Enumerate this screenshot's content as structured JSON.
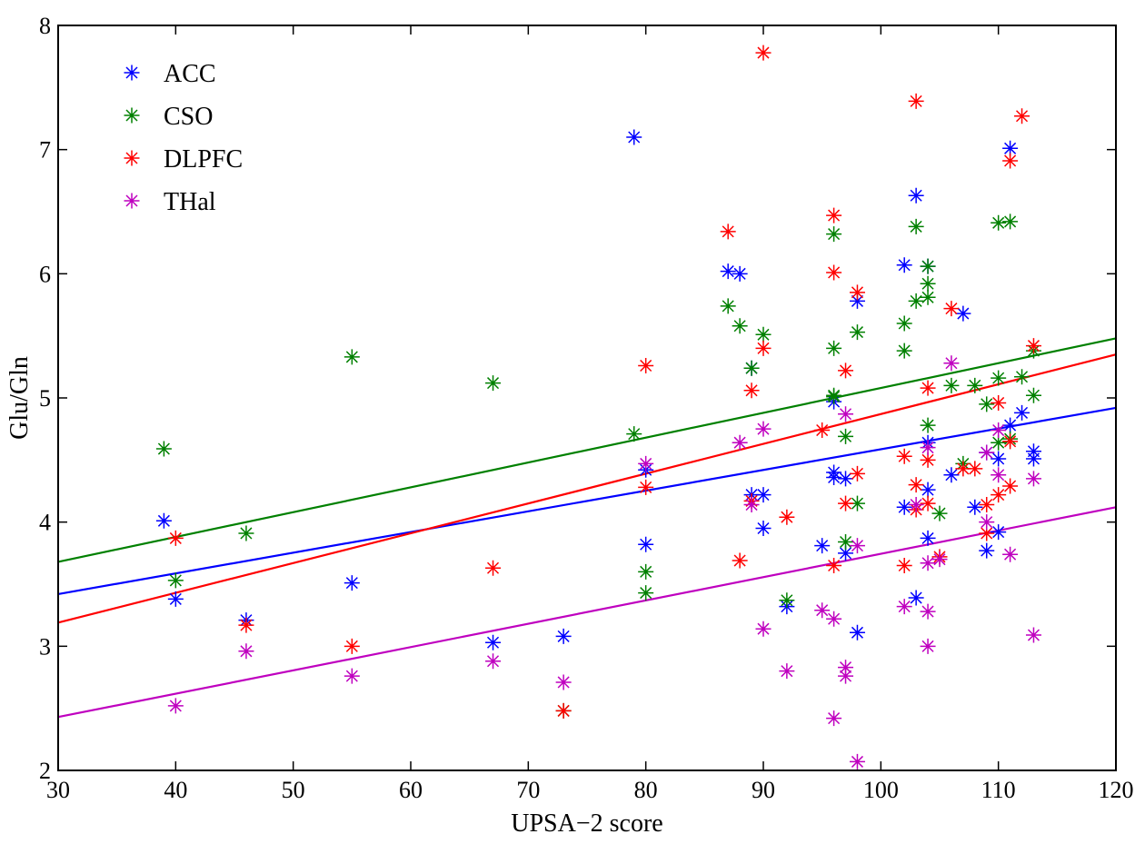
{
  "chart_data": {
    "type": "scatter",
    "title": "",
    "xlabel": "UPSA−2 score",
    "ylabel": "Glu/Gln",
    "xlim": [
      30,
      120
    ],
    "ylim": [
      2,
      8
    ],
    "xticks": [
      "30",
      "40",
      "50",
      "60",
      "70",
      "80",
      "90",
      "100",
      "110",
      "120"
    ],
    "yticks": [
      "2",
      "3",
      "4",
      "5",
      "6",
      "7",
      "8"
    ],
    "legend_position": "top-left",
    "grid": false,
    "series": [
      {
        "name": "ACC",
        "color": "#0000ff",
        "fit": {
          "x": [
            30,
            120
          ],
          "y": [
            3.42,
            4.92
          ]
        },
        "points": [
          [
            39,
            4.01
          ],
          [
            40,
            3.38
          ],
          [
            46,
            3.21
          ],
          [
            55,
            3.51
          ],
          [
            67,
            3.03
          ],
          [
            73,
            3.08
          ],
          [
            79,
            7.1
          ],
          [
            80,
            3.82
          ],
          [
            80,
            4.42
          ],
          [
            87,
            6.02
          ],
          [
            88,
            6.0
          ],
          [
            89,
            5.24
          ],
          [
            89,
            4.22
          ],
          [
            90,
            4.22
          ],
          [
            90,
            3.95
          ],
          [
            92,
            3.32
          ],
          [
            95,
            3.81
          ],
          [
            96,
            4.4
          ],
          [
            96,
            4.36
          ],
          [
            96,
            4.97
          ],
          [
            97,
            4.35
          ],
          [
            97,
            3.75
          ],
          [
            98,
            5.78
          ],
          [
            98,
            3.11
          ],
          [
            102,
            6.07
          ],
          [
            102,
            4.12
          ],
          [
            103,
            6.63
          ],
          [
            103,
            3.39
          ],
          [
            104,
            6.06
          ],
          [
            104,
            4.64
          ],
          [
            104,
            4.26
          ],
          [
            104,
            3.87
          ],
          [
            106,
            4.38
          ],
          [
            107,
            5.68
          ],
          [
            108,
            4.12
          ],
          [
            109,
            4.56
          ],
          [
            109,
            3.77
          ],
          [
            110,
            4.51
          ],
          [
            110,
            3.92
          ],
          [
            111,
            7.01
          ],
          [
            111,
            4.78
          ],
          [
            112,
            4.88
          ],
          [
            113,
            4.57
          ],
          [
            113,
            4.51
          ]
        ]
      },
      {
        "name": "CSO",
        "color": "#008000",
        "fit": {
          "x": [
            30,
            120
          ],
          "y": [
            3.68,
            5.48
          ]
        },
        "points": [
          [
            39,
            4.59
          ],
          [
            40,
            3.53
          ],
          [
            46,
            3.91
          ],
          [
            55,
            5.33
          ],
          [
            67,
            5.12
          ],
          [
            73,
            2.48
          ],
          [
            79,
            4.71
          ],
          [
            80,
            3.6
          ],
          [
            80,
            3.43
          ],
          [
            87,
            5.74
          ],
          [
            88,
            5.58
          ],
          [
            89,
            5.24
          ],
          [
            90,
            5.51
          ],
          [
            92,
            3.37
          ],
          [
            96,
            6.32
          ],
          [
            96,
            5.4
          ],
          [
            96,
            5.02
          ],
          [
            96,
            5.01
          ],
          [
            97,
            4.69
          ],
          [
            97,
            3.84
          ],
          [
            98,
            5.53
          ],
          [
            98,
            4.15
          ],
          [
            102,
            5.6
          ],
          [
            102,
            5.38
          ],
          [
            103,
            6.38
          ],
          [
            103,
            5.78
          ],
          [
            104,
            6.06
          ],
          [
            104,
            5.92
          ],
          [
            104,
            5.81
          ],
          [
            104,
            4.78
          ],
          [
            105,
            4.07
          ],
          [
            106,
            5.1
          ],
          [
            107,
            4.47
          ],
          [
            108,
            5.1
          ],
          [
            109,
            4.95
          ],
          [
            110,
            6.41
          ],
          [
            110,
            5.16
          ],
          [
            110,
            4.64
          ],
          [
            111,
            6.42
          ],
          [
            111,
            4.67
          ],
          [
            112,
            5.17
          ],
          [
            113,
            5.02
          ],
          [
            113,
            5.38
          ]
        ]
      },
      {
        "name": "DLPFC",
        "color": "#ff0000",
        "fit": {
          "x": [
            30,
            120
          ],
          "y": [
            3.19,
            5.35
          ]
        },
        "points": [
          [
            40,
            3.87
          ],
          [
            46,
            3.17
          ],
          [
            55,
            3.0
          ],
          [
            67,
            3.63
          ],
          [
            73,
            2.48
          ],
          [
            80,
            5.26
          ],
          [
            80,
            4.28
          ],
          [
            87,
            6.34
          ],
          [
            88,
            3.69
          ],
          [
            89,
            5.06
          ],
          [
            89,
            4.17
          ],
          [
            90,
            7.78
          ],
          [
            90,
            5.4
          ],
          [
            92,
            4.04
          ],
          [
            95,
            4.74
          ],
          [
            96,
            6.47
          ],
          [
            96,
            6.01
          ],
          [
            96,
            3.65
          ],
          [
            97,
            5.22
          ],
          [
            97,
            4.15
          ],
          [
            98,
            5.85
          ],
          [
            98,
            4.39
          ],
          [
            102,
            4.53
          ],
          [
            102,
            3.65
          ],
          [
            103,
            7.39
          ],
          [
            103,
            4.3
          ],
          [
            103,
            4.1
          ],
          [
            104,
            5.08
          ],
          [
            104,
            4.5
          ],
          [
            104,
            4.15
          ],
          [
            105,
            3.72
          ],
          [
            106,
            5.72
          ],
          [
            107,
            4.43
          ],
          [
            108,
            4.43
          ],
          [
            109,
            4.14
          ],
          [
            109,
            3.91
          ],
          [
            110,
            4.96
          ],
          [
            110,
            4.22
          ],
          [
            111,
            6.91
          ],
          [
            111,
            4.65
          ],
          [
            111,
            4.29
          ],
          [
            112,
            7.27
          ],
          [
            113,
            5.42
          ]
        ]
      },
      {
        "name": "THal",
        "color": "#bf00bf",
        "fit": {
          "x": [
            30,
            120
          ],
          "y": [
            2.43,
            4.12
          ]
        },
        "points": [
          [
            40,
            2.52
          ],
          [
            46,
            2.96
          ],
          [
            55,
            2.76
          ],
          [
            67,
            2.88
          ],
          [
            73,
            2.71
          ],
          [
            80,
            4.47
          ],
          [
            88,
            4.64
          ],
          [
            89,
            4.14
          ],
          [
            90,
            4.75
          ],
          [
            90,
            3.14
          ],
          [
            92,
            2.8
          ],
          [
            95,
            3.29
          ],
          [
            96,
            3.22
          ],
          [
            96,
            2.42
          ],
          [
            97,
            4.87
          ],
          [
            97,
            2.83
          ],
          [
            97,
            2.76
          ],
          [
            98,
            3.81
          ],
          [
            98,
            2.07
          ],
          [
            102,
            3.32
          ],
          [
            103,
            4.14
          ],
          [
            104,
            4.6
          ],
          [
            104,
            3.67
          ],
          [
            104,
            3.28
          ],
          [
            104,
            3.0
          ],
          [
            105,
            3.7
          ],
          [
            106,
            5.28
          ],
          [
            109,
            4.56
          ],
          [
            109,
            4.0
          ],
          [
            110,
            4.74
          ],
          [
            110,
            4.38
          ],
          [
            111,
            3.74
          ],
          [
            113,
            4.35
          ],
          [
            113,
            3.09
          ]
        ]
      }
    ]
  }
}
